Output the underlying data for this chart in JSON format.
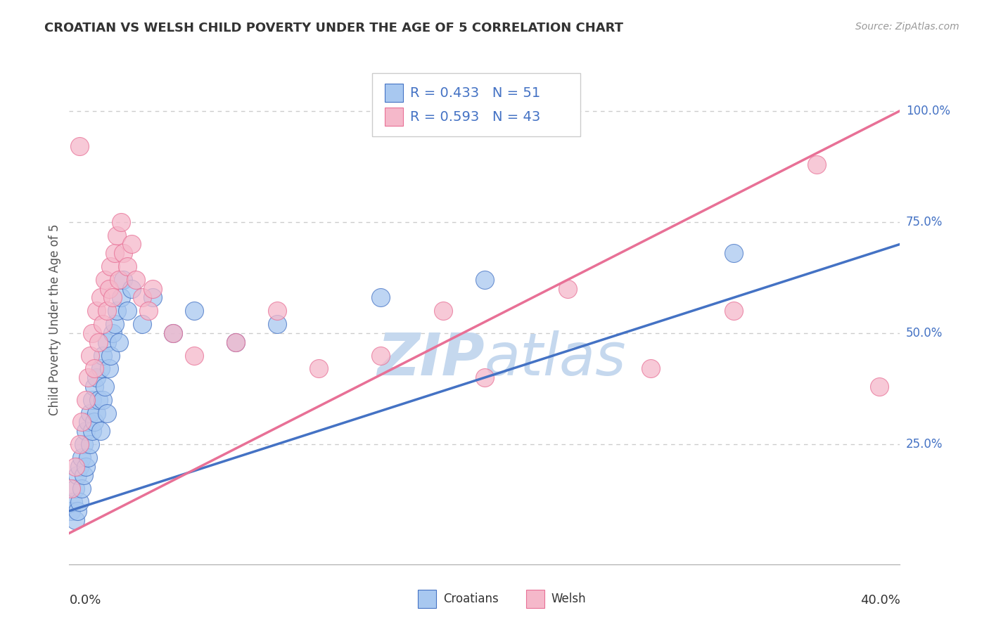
{
  "title": "CROATIAN VS WELSH CHILD POVERTY UNDER THE AGE OF 5 CORRELATION CHART",
  "source": "Source: ZipAtlas.com",
  "ylabel": "Child Poverty Under the Age of 5",
  "yaxis_labels": [
    "25.0%",
    "50.0%",
    "75.0%",
    "100.0%"
  ],
  "yaxis_values": [
    0.25,
    0.5,
    0.75,
    1.0
  ],
  "xlim": [
    0.0,
    0.4
  ],
  "ylim": [
    -0.02,
    1.08
  ],
  "croatian_R": 0.433,
  "croatian_N": 51,
  "welsh_R": 0.593,
  "welsh_N": 43,
  "croatian_color": "#A8C8F0",
  "welsh_color": "#F5B8CA",
  "croatian_line_color": "#4472C4",
  "welsh_line_color": "#E87096",
  "watermark_color": "#C5D8EE",
  "background_color": "#FFFFFF",
  "grid_color": "#CCCCCC",
  "title_color": "#333333",
  "label_color": "#4472C4",
  "croatian_scatter_x": [
    0.001,
    0.002,
    0.003,
    0.003,
    0.004,
    0.004,
    0.005,
    0.005,
    0.006,
    0.006,
    0.007,
    0.007,
    0.008,
    0.008,
    0.009,
    0.009,
    0.01,
    0.01,
    0.011,
    0.011,
    0.012,
    0.012,
    0.013,
    0.013,
    0.014,
    0.015,
    0.015,
    0.016,
    0.016,
    0.017,
    0.018,
    0.018,
    0.019,
    0.02,
    0.021,
    0.022,
    0.023,
    0.024,
    0.025,
    0.026,
    0.028,
    0.03,
    0.035,
    0.04,
    0.05,
    0.06,
    0.08,
    0.1,
    0.15,
    0.2,
    0.32
  ],
  "croatian_scatter_y": [
    0.1,
    0.12,
    0.08,
    0.15,
    0.1,
    0.18,
    0.12,
    0.2,
    0.15,
    0.22,
    0.18,
    0.25,
    0.2,
    0.28,
    0.22,
    0.3,
    0.25,
    0.32,
    0.28,
    0.35,
    0.3,
    0.38,
    0.32,
    0.4,
    0.35,
    0.28,
    0.42,
    0.35,
    0.45,
    0.38,
    0.32,
    0.48,
    0.42,
    0.45,
    0.5,
    0.52,
    0.55,
    0.48,
    0.58,
    0.62,
    0.55,
    0.6,
    0.52,
    0.58,
    0.5,
    0.55,
    0.48,
    0.52,
    0.58,
    0.62,
    0.68
  ],
  "welsh_scatter_x": [
    0.001,
    0.003,
    0.005,
    0.006,
    0.008,
    0.009,
    0.01,
    0.011,
    0.012,
    0.013,
    0.014,
    0.015,
    0.016,
    0.017,
    0.018,
    0.019,
    0.02,
    0.021,
    0.022,
    0.023,
    0.024,
    0.025,
    0.026,
    0.028,
    0.03,
    0.032,
    0.035,
    0.038,
    0.04,
    0.05,
    0.06,
    0.08,
    0.1,
    0.12,
    0.15,
    0.18,
    0.2,
    0.24,
    0.28,
    0.32,
    0.36,
    0.005,
    0.39
  ],
  "welsh_scatter_y": [
    0.15,
    0.2,
    0.25,
    0.3,
    0.35,
    0.4,
    0.45,
    0.5,
    0.42,
    0.55,
    0.48,
    0.58,
    0.52,
    0.62,
    0.55,
    0.6,
    0.65,
    0.58,
    0.68,
    0.72,
    0.62,
    0.75,
    0.68,
    0.65,
    0.7,
    0.62,
    0.58,
    0.55,
    0.6,
    0.5,
    0.45,
    0.48,
    0.55,
    0.42,
    0.45,
    0.55,
    0.4,
    0.6,
    0.42,
    0.55,
    0.88,
    0.92,
    0.38
  ]
}
